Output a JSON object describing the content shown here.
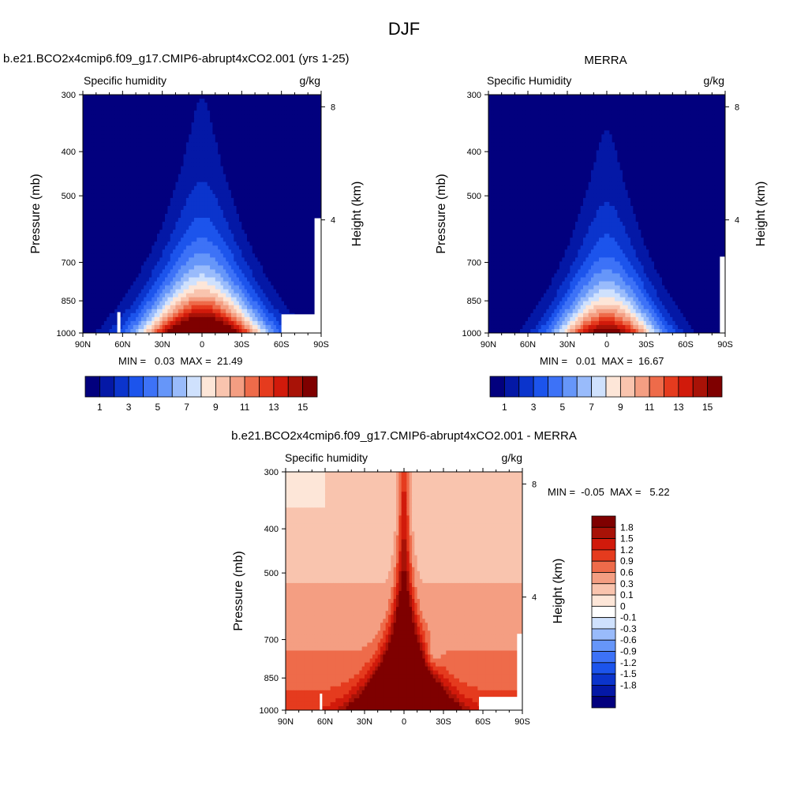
{
  "page": {
    "title": "DJF"
  },
  "colors": {
    "abs_scale": [
      "#02007e",
      "#0418a6",
      "#0b34cc",
      "#1c54ec",
      "#3d72f7",
      "#6696f9",
      "#99bbfb",
      "#cfe1fd",
      "#fde6d8",
      "#f9c4ae",
      "#f49e82",
      "#ee6b4a",
      "#e53b1e",
      "#d11a0b",
      "#a81207",
      "#7f0000"
    ],
    "diff_scale": [
      "#7f0000",
      "#a81207",
      "#d11a0b",
      "#e53b1e",
      "#ee6b4a",
      "#f49e82",
      "#f9c4ae",
      "#fde6d8",
      "#ffffff",
      "#cfe1fd",
      "#99bbfb",
      "#6696f9",
      "#3d72f7",
      "#1c54ec",
      "#0b34cc",
      "#0418a6",
      "#02007e"
    ]
  },
  "chart_data": [
    {
      "type": "contour",
      "title": "b.e21.BCO2x4cmip6.f09_g17.CMIP6-abrupt4xCO2.001 (yrs 1-25)",
      "subtitle_left": "Specific humidity",
      "units": "g/kg",
      "ylabel": "Pressure (mb)",
      "ylabel_right": "Height (km)",
      "x_ticks": [
        "90N",
        "60N",
        "30N",
        "0",
        "30S",
        "60S",
        "90S"
      ],
      "x_values": [
        90,
        60,
        30,
        0,
        -30,
        -60,
        -90
      ],
      "y_ticks": [
        "300",
        "400",
        "500",
        "700",
        "850",
        "1000"
      ],
      "y_values": [
        300,
        400,
        500,
        700,
        850,
        1000
      ],
      "y_right_ticks": [
        "8",
        "4"
      ],
      "y_right_values": [
        8,
        4
      ],
      "min_label": "MIN =   0.03  MAX =  21.49",
      "peak_value": 21.49,
      "colorbar_labels": [
        "1",
        "3",
        "5",
        "7",
        "9",
        "11",
        "13",
        "15"
      ],
      "colorbar_levels": [
        1,
        2,
        3,
        4,
        5,
        6,
        7,
        8,
        9,
        10,
        11,
        12,
        13,
        14,
        15
      ]
    },
    {
      "type": "contour",
      "title": "MERRA",
      "subtitle_left": "Specific Humidity",
      "units": "g/kg",
      "ylabel": "Pressure (mb)",
      "ylabel_right": "Height (km)",
      "x_ticks": [
        "90N",
        "60N",
        "30N",
        "0",
        "30S",
        "60S",
        "90S"
      ],
      "x_values": [
        90,
        60,
        30,
        0,
        -30,
        -60,
        -90
      ],
      "y_ticks": [
        "300",
        "400",
        "500",
        "700",
        "850",
        "1000"
      ],
      "y_values": [
        300,
        400,
        500,
        700,
        850,
        1000
      ],
      "y_right_ticks": [
        "8",
        "4"
      ],
      "y_right_values": [
        8,
        4
      ],
      "min_label": "MIN =   0.01  MAX =  16.67",
      "peak_value": 16.67,
      "colorbar_labels": [
        "1",
        "3",
        "5",
        "7",
        "9",
        "11",
        "13",
        "15"
      ],
      "colorbar_levels": [
        1,
        2,
        3,
        4,
        5,
        6,
        7,
        8,
        9,
        10,
        11,
        12,
        13,
        14,
        15
      ]
    },
    {
      "type": "contour",
      "title": "b.e21.BCO2x4cmip6.f09_g17.CMIP6-abrupt4xCO2.001 - MERRA",
      "subtitle_left": "Specific humidity",
      "units": "g/kg",
      "ylabel": "Pressure (mb)",
      "ylabel_right": "Height (km)",
      "x_ticks": [
        "90N",
        "60N",
        "30N",
        "0",
        "30S",
        "60S",
        "90S"
      ],
      "x_values": [
        90,
        60,
        30,
        0,
        -30,
        -60,
        -90
      ],
      "y_ticks": [
        "300",
        "400",
        "500",
        "700",
        "850",
        "1000"
      ],
      "y_values": [
        300,
        400,
        500,
        700,
        850,
        1000
      ],
      "y_right_ticks": [
        "8",
        "4"
      ],
      "y_right_values": [
        8,
        4
      ],
      "min_label": "MIN =  -0.05  MAX =   5.22",
      "peak_value": 5.22,
      "colorbar_labels": [
        "1.8",
        "1.5",
        "1.2",
        "0.9",
        "0.6",
        "0.3",
        "0.1",
        "0",
        "-0.1",
        "-0.3",
        "-0.6",
        "-0.9",
        "-1.2",
        "-1.5",
        "-1.8"
      ],
      "colorbar_levels": [
        1.8,
        1.5,
        1.2,
        0.9,
        0.6,
        0.3,
        0.1,
        0,
        -0.1,
        -0.3,
        -0.6,
        -0.9,
        -1.2,
        -1.5,
        -1.8
      ]
    }
  ]
}
